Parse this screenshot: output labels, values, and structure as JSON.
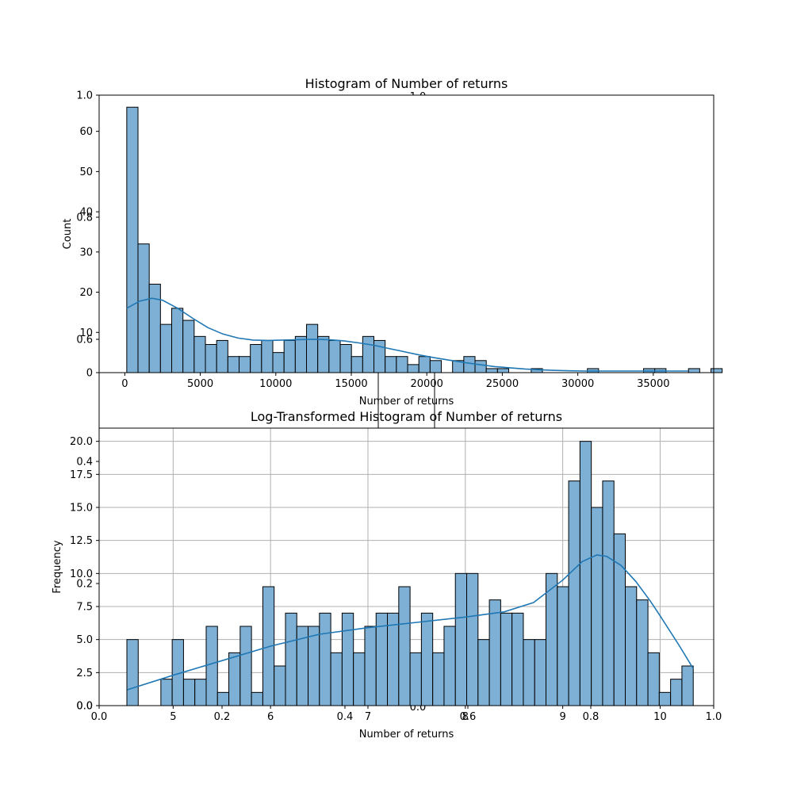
{
  "chart_data": [
    {
      "type": "bar",
      "title": "Histogram of Number of returns",
      "xlabel": "Number of returns",
      "ylabel": "Count",
      "xlim": [
        -1700,
        39000
      ],
      "ylim": [
        0,
        69
      ],
      "grid": false,
      "bar_color": "#7eb0d5",
      "line_color": "#1f77b4",
      "xticks": [
        0,
        5000,
        10000,
        15000,
        20000,
        25000,
        30000,
        35000
      ],
      "xtick_labels": [
        "0",
        "5000",
        "10000",
        "15000",
        "20000",
        "25000",
        "30000",
        "35000"
      ],
      "yticks": [
        0,
        10,
        20,
        30,
        40,
        50,
        60
      ],
      "ytick_labels": [
        "0",
        "10",
        "20",
        "30",
        "40",
        "50",
        "60"
      ],
      "bin_start": 130,
      "bin_width": 744,
      "counts": [
        66,
        32,
        22,
        12,
        16,
        13,
        9,
        7,
        8,
        4,
        4,
        7,
        8,
        5,
        8,
        9,
        12,
        9,
        8,
        7,
        4,
        9,
        8,
        4,
        4,
        2,
        4,
        3,
        0,
        3,
        4,
        3,
        1,
        1,
        0,
        0,
        1,
        0,
        0,
        0,
        0,
        1,
        0,
        0,
        0,
        0,
        1,
        1,
        0,
        0,
        1,
        0,
        1
      ],
      "kde_x": [
        130,
        1000,
        1800,
        2500,
        3500,
        4500,
        5500,
        6500,
        7500,
        8500,
        9500,
        10500,
        11500,
        12500,
        13500,
        14500,
        15500,
        16500,
        17500,
        18500,
        19500,
        20500,
        21500,
        22500,
        23500,
        24500,
        25500,
        26500,
        27500,
        28500,
        29500,
        30500,
        32000,
        34000,
        36000,
        37300
      ],
      "kde_y": [
        16,
        17.8,
        18.5,
        18,
        16,
        13.5,
        11.2,
        9.6,
        8.6,
        8.1,
        8.0,
        8.1,
        8.2,
        8.3,
        8.2,
        7.9,
        7.4,
        6.8,
        6.0,
        5.2,
        4.4,
        3.7,
        3.1,
        2.5,
        2.0,
        1.5,
        1.2,
        0.9,
        0.7,
        0.55,
        0.45,
        0.4,
        0.4,
        0.4,
        0.4,
        0.4
      ]
    },
    {
      "type": "bar",
      "title": "Log-Transformed Histogram of Number of returns",
      "xlabel": "Number of returns",
      "ylabel": "Frequency",
      "xlim": [
        4.24,
        10.55
      ],
      "ylim": [
        0,
        21
      ],
      "grid": true,
      "bar_color": "#7eb0d5",
      "line_color": "#1f77b4",
      "xticks": [
        5,
        6,
        7,
        8,
        9,
        10
      ],
      "xtick_labels": [
        "5",
        "6",
        "7",
        "8",
        "9",
        "10"
      ],
      "yticks": [
        0,
        2.5,
        5,
        7.5,
        10,
        12.5,
        15,
        17.5,
        20
      ],
      "ytick_labels": [
        "0.0",
        "2.5",
        "5.0",
        "7.5",
        "10.0",
        "12.5",
        "15.0",
        "17.5",
        "20.0"
      ],
      "bin_start": 4.525,
      "bin_width": 0.1163,
      "counts": [
        5,
        0,
        0,
        2,
        5,
        2,
        2,
        6,
        1,
        4,
        6,
        1,
        9,
        3,
        7,
        6,
        6,
        7,
        4,
        7,
        4,
        6,
        7,
        7,
        9,
        4,
        7,
        4,
        6,
        10,
        10,
        5,
        8,
        7,
        7,
        5,
        5,
        10,
        9,
        17,
        20,
        15,
        17,
        13,
        9,
        8,
        4,
        1,
        2,
        3
      ],
      "kde_x": [
        4.53,
        5.0,
        5.5,
        6.0,
        6.5,
        7.0,
        7.5,
        8.0,
        8.4,
        8.7,
        9.0,
        9.2,
        9.35,
        9.45,
        9.6,
        9.75,
        9.9,
        10.0,
        10.2,
        10.34
      ],
      "kde_y": [
        1.2,
        2.3,
        3.4,
        4.5,
        5.4,
        5.9,
        6.3,
        6.7,
        7.1,
        7.8,
        9.5,
        10.9,
        11.4,
        11.3,
        10.6,
        9.4,
        7.9,
        6.8,
        4.5,
        2.8
      ]
    }
  ],
  "ghost_axis": {
    "xtick_labels": [
      "0.0",
      "0.2",
      "0.4",
      "0.6",
      "0.8",
      "1.0"
    ],
    "ytick_labels": [
      "0.0",
      "0.2",
      "0.4",
      "0.6",
      "0.8",
      "1.0"
    ]
  }
}
